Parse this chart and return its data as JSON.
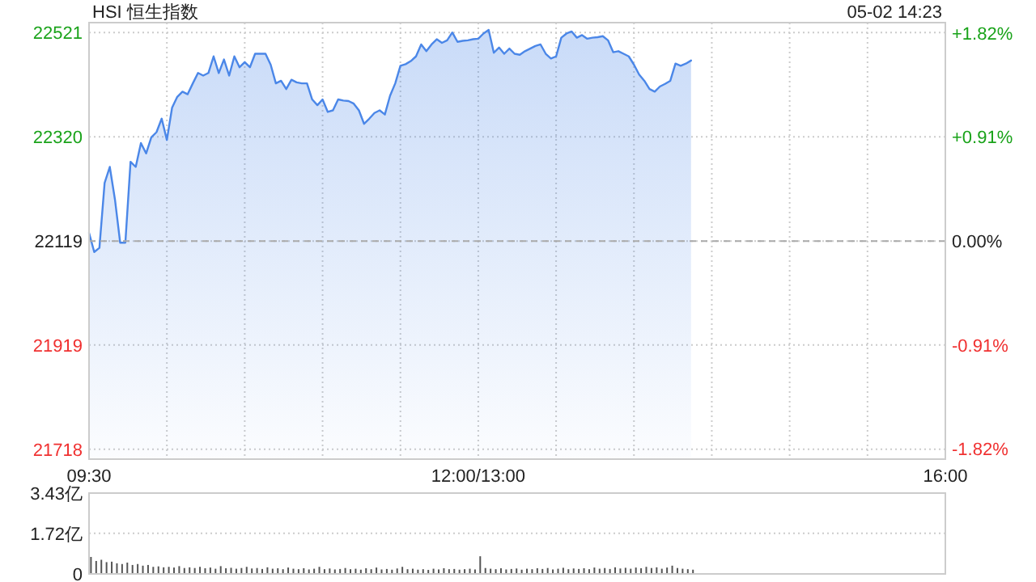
{
  "chart_data": [
    {
      "type": "area",
      "title": "HSI 恒生指数",
      "annotations": [
        "05-02 14:23"
      ],
      "categories": [
        "09:30",
        null,
        null,
        null,
        null,
        null,
        null,
        null,
        null,
        null,
        null,
        null,
        null,
        null,
        null,
        null,
        null,
        null,
        null,
        null,
        null,
        null,
        null,
        null,
        null,
        null,
        null,
        null,
        null,
        null,
        null,
        null,
        null,
        null,
        null,
        null,
        null,
        null,
        null,
        null,
        null,
        null,
        null,
        null,
        null,
        null,
        null,
        null,
        null,
        null,
        null,
        null,
        null,
        null,
        null,
        null,
        null,
        null,
        null,
        null,
        null,
        null,
        null,
        null,
        null,
        null,
        null,
        null,
        null,
        null,
        null,
        null,
        null,
        null,
        null,
        "12:00/13:00",
        null,
        null,
        null,
        null,
        null,
        null,
        null,
        null,
        null,
        null,
        null,
        null,
        null,
        null,
        null,
        null,
        null,
        null,
        null,
        null,
        null,
        null,
        null,
        null,
        null,
        null,
        null,
        null,
        null,
        null,
        null,
        null,
        null,
        null,
        null,
        null,
        null,
        null,
        null,
        null,
        null,
        null,
        null,
        null,
        null,
        null,
        null,
        null,
        null,
        null,
        null,
        null,
        null,
        null,
        null,
        null,
        null,
        null,
        null,
        null,
        null,
        null,
        null,
        null,
        null,
        null,
        null,
        null,
        null,
        null,
        null,
        null,
        null,
        null,
        null,
        null,
        null,
        null,
        null,
        null,
        null,
        null,
        null,
        null,
        null,
        null,
        null,
        null,
        null,
        "16:00"
      ],
      "ylim": [
        21699,
        22540
      ],
      "yticks": [
        21718,
        21919,
        22119,
        22320,
        22521
      ],
      "y2lim": [
        -1.91,
        1.91
      ],
      "y2ticks": [
        {
          "value": -1.82,
          "label": "-1.82%"
        },
        {
          "value": -0.91,
          "label": "-0.91%"
        },
        {
          "value": 0,
          "label": "0.00%"
        },
        {
          "value": 0.91,
          "label": "+0.91%"
        },
        {
          "value": 1.82,
          "label": "+1.82%"
        }
      ],
      "ref_lines": [
        {
          "axis": "y",
          "value": 22119,
          "color": "#aaaaaa",
          "line_style": "dashed"
        }
      ],
      "grid": true,
      "series": [
        {
          "color": "#4b87e8",
          "values": [
            22135,
            22098,
            22106,
            22231,
            22262,
            22199,
            22116,
            22116,
            22272,
            22262,
            22308,
            22288,
            22319,
            22329,
            22355,
            22314,
            22376,
            22397,
            22407,
            22402,
            22423,
            22443,
            22438,
            22443,
            22475,
            22443,
            22469,
            22438,
            22475,
            22454,
            22464,
            22454,
            22480,
            22480,
            22480,
            22459,
            22423,
            22428,
            22412,
            22430,
            22425,
            22423,
            22423,
            22392,
            22381,
            22392,
            22368,
            22371,
            22392,
            22390,
            22389,
            22384,
            22371,
            22345,
            22355,
            22366,
            22371,
            22363,
            22399,
            22423,
            22457,
            22460,
            22466,
            22475,
            22498,
            22485,
            22498,
            22508,
            22501,
            22506,
            22521,
            22503,
            22505,
            22506,
            22508,
            22509,
            22519,
            22526,
            22482,
            22492,
            22480,
            22490,
            22480,
            22478,
            22485,
            22490,
            22495,
            22498,
            22480,
            22471,
            22475,
            22511,
            22519,
            22523,
            22511,
            22516,
            22509,
            22511,
            22512,
            22514,
            22506,
            22483,
            22485,
            22480,
            22475,
            22459,
            22440,
            22428,
            22412,
            22407,
            22417,
            22422,
            22428,
            22461,
            22457,
            22461,
            22467,
            null,
            null,
            null,
            null,
            null,
            null,
            null,
            null,
            null,
            null,
            null,
            null,
            null,
            null,
            null,
            null,
            null,
            null,
            null,
            null,
            null,
            null,
            null,
            null,
            null,
            null,
            null,
            null,
            null,
            null,
            null,
            null,
            null,
            null,
            null,
            null,
            null,
            null,
            null,
            null,
            null,
            null,
            null,
            null,
            null,
            null,
            null,
            null,
            null
          ]
        }
      ]
    },
    {
      "type": "bar",
      "tick_labels": "y",
      "grid": "y",
      "categories": [
        null,
        null,
        null,
        null,
        null,
        null,
        null,
        null,
        null,
        null,
        null,
        null,
        null,
        null,
        null,
        null,
        null,
        null,
        null,
        null,
        null,
        null,
        null,
        null,
        null,
        null,
        null,
        null,
        null,
        null,
        null,
        null,
        null,
        null,
        null,
        null,
        null,
        null,
        null,
        null,
        null,
        null,
        null,
        null,
        null,
        null,
        null,
        null,
        null,
        null,
        null,
        null,
        null,
        null,
        null,
        null,
        null,
        null,
        null,
        null,
        null,
        null,
        null,
        null,
        null,
        null,
        null,
        null,
        null,
        null,
        null,
        null,
        null,
        null,
        null,
        null,
        null,
        null,
        null,
        null,
        null,
        null,
        null,
        null,
        null,
        null,
        null,
        null,
        null,
        null,
        null,
        null,
        null,
        null,
        null,
        null,
        null,
        null,
        null,
        null,
        null,
        null,
        null,
        null,
        null,
        null,
        null,
        null,
        null,
        null,
        null,
        null,
        null,
        null,
        null,
        null,
        null,
        null,
        null,
        null,
        null,
        null,
        null,
        null,
        null,
        null,
        null,
        null,
        null,
        null,
        null,
        null,
        null,
        null,
        null,
        null,
        null,
        null,
        null,
        null,
        null,
        null,
        null,
        null,
        null,
        null,
        null,
        null,
        null,
        null,
        null,
        null,
        null,
        null,
        null,
        null,
        null,
        null,
        null,
        null,
        null,
        null,
        null,
        null,
        null,
        null
      ],
      "ylim": [
        0,
        3.43
      ],
      "yticks": [
        0,
        {
          "value": 1.72,
          "label": "1.72亿"
        },
        {
          "value": 3.43,
          "label": "3.43亿"
        }
      ],
      "series": [
        {
          "color": "#555555",
          "values": [
            0.72,
            0.55,
            0.6,
            0.5,
            0.52,
            0.45,
            0.42,
            0.48,
            0.38,
            0.42,
            0.35,
            0.38,
            0.3,
            0.32,
            0.28,
            0.3,
            0.27,
            0.33,
            0.25,
            0.28,
            0.25,
            0.3,
            0.24,
            0.27,
            0.22,
            0.33,
            0.24,
            0.26,
            0.22,
            0.25,
            0.3,
            0.23,
            0.25,
            0.21,
            0.28,
            0.22,
            0.24,
            0.2,
            0.27,
            0.22,
            0.2,
            0.24,
            0.19,
            0.22,
            0.3,
            0.2,
            0.23,
            0.19,
            0.21,
            0.25,
            0.2,
            0.22,
            0.18,
            0.24,
            0.2,
            0.27,
            0.19,
            0.21,
            0.18,
            0.23,
            0.3,
            0.2,
            0.22,
            0.18,
            0.2,
            0.17,
            0.22,
            0.19,
            0.24,
            0.2,
            0.21,
            0.18,
            0.2,
            0.22,
            0.19,
            0.75,
            0.25,
            0.22,
            0.2,
            0.24,
            0.19,
            0.21,
            0.23,
            0.18,
            0.22,
            0.2,
            0.24,
            0.21,
            0.25,
            0.19,
            0.22,
            0.26,
            0.2,
            0.23,
            0.21,
            0.24,
            0.2,
            0.27,
            0.22,
            0.25,
            0.21,
            0.28,
            0.23,
            0.26,
            0.22,
            0.27,
            0.24,
            0.3,
            0.25,
            0.28,
            0.22,
            0.27,
            0.35,
            0.25,
            0.22,
            0.2,
            0.18,
            null,
            null,
            null,
            null,
            null,
            null,
            null,
            null,
            null,
            null,
            null,
            null,
            null,
            null,
            null,
            null,
            null,
            null,
            null,
            null,
            null,
            null,
            null,
            null,
            null,
            null,
            null,
            null,
            null,
            null,
            null,
            null,
            null,
            null,
            null,
            null,
            null,
            null,
            null,
            null,
            null,
            null,
            null,
            null,
            null,
            null,
            null,
            null,
            null
          ]
        }
      ]
    }
  ]
}
